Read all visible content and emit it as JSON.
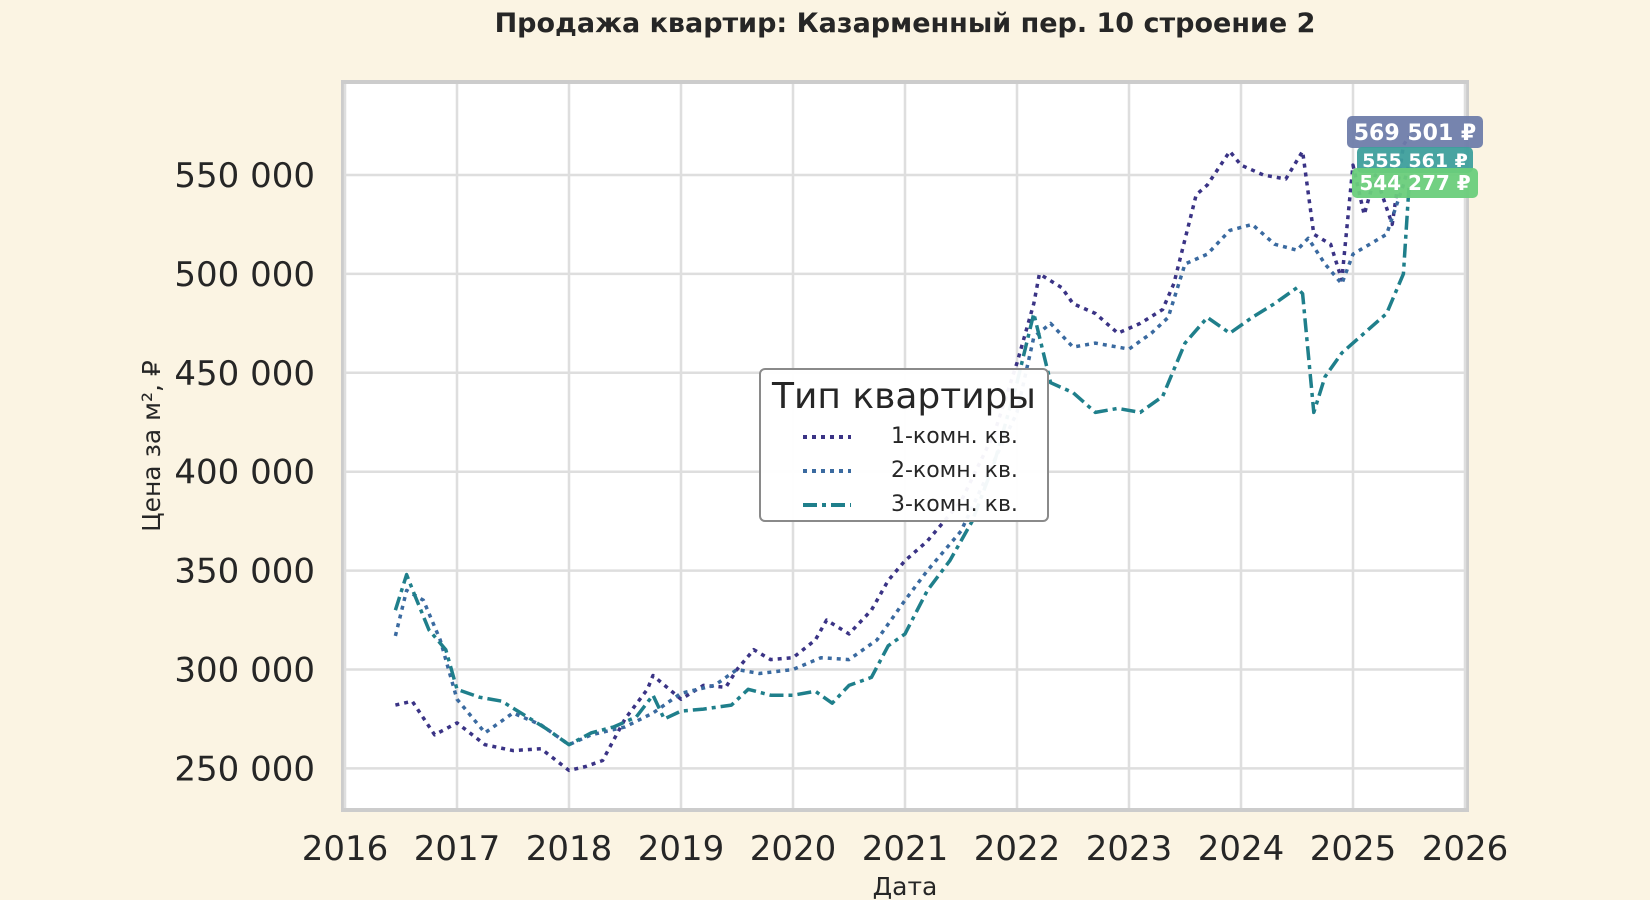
{
  "chart_data": {
    "type": "line",
    "title": "Продажа квартир: Казарменный пер. 10 строение 2",
    "xlabel": "Дата",
    "ylabel": "Цена за м², ₽",
    "xlim": [
      2016,
      2026
    ],
    "ylim": [
      230000,
      596000
    ],
    "x_ticks": [
      "2016",
      "2017",
      "2018",
      "2019",
      "2020",
      "2021",
      "2022",
      "2023",
      "2024",
      "2025",
      "2026"
    ],
    "y_ticks": [
      "250 000",
      "300 000",
      "350 000",
      "400 000",
      "450 000",
      "500 000",
      "550 000"
    ],
    "grid": true,
    "legend": {
      "title": "Тип квартиры",
      "placement": "center",
      "entries": [
        "1-комн. кв.",
        "2-комн. кв.",
        "3-комн. кв."
      ]
    },
    "series": [
      {
        "name": "1-комн. кв.",
        "color": "#3a3385",
        "style": "dotted",
        "x": [
          2016.45,
          2016.6,
          2016.8,
          2017.0,
          2017.25,
          2017.5,
          2017.75,
          2018.0,
          2018.15,
          2018.3,
          2018.5,
          2018.7,
          2018.75,
          2019.0,
          2019.2,
          2019.4,
          2019.5,
          2019.65,
          2019.8,
          2020.0,
          2020.2,
          2020.3,
          2020.5,
          2020.7,
          2020.85,
          2021.0,
          2021.2,
          2021.5,
          2021.8,
          2022.0,
          2022.15,
          2022.2,
          2022.4,
          2022.5,
          2022.7,
          2022.9,
          2023.1,
          2023.3,
          2023.4,
          2023.6,
          2023.7,
          2023.9,
          2024.0,
          2024.2,
          2024.4,
          2024.55,
          2024.65,
          2024.8,
          2024.9,
          2025.0,
          2025.1,
          2025.2,
          2025.35,
          2025.45,
          2025.5
        ],
        "y": [
          282000,
          284000,
          267000,
          273000,
          262000,
          259000,
          260000,
          249000,
          251000,
          254000,
          275000,
          290000,
          297000,
          285000,
          292000,
          291000,
          300000,
          310000,
          305000,
          306000,
          315000,
          325000,
          318000,
          330000,
          345000,
          355000,
          365000,
          385000,
          420000,
          455000,
          485000,
          500000,
          493000,
          485000,
          480000,
          470000,
          475000,
          482000,
          495000,
          540000,
          545000,
          562000,
          555000,
          550000,
          548000,
          562000,
          520000,
          515000,
          497000,
          555000,
          530000,
          550000,
          525000,
          565000,
          569501
        ]
      },
      {
        "name": "2-комн. кв.",
        "color": "#3a6aa0",
        "style": "dotted",
        "x": [
          2016.45,
          2016.55,
          2016.7,
          2016.85,
          2017.0,
          2017.25,
          2017.5,
          2017.75,
          2018.0,
          2018.2,
          2018.5,
          2018.75,
          2019.0,
          2019.3,
          2019.5,
          2019.7,
          2020.0,
          2020.25,
          2020.5,
          2020.75,
          2021.0,
          2021.2,
          2021.5,
          2021.75,
          2022.0,
          2022.15,
          2022.3,
          2022.5,
          2022.7,
          2023.0,
          2023.2,
          2023.35,
          2023.5,
          2023.7,
          2023.9,
          2024.1,
          2024.3,
          2024.5,
          2024.6,
          2024.75,
          2024.9,
          2025.0,
          2025.15,
          2025.3,
          2025.45,
          2025.5
        ],
        "y": [
          317000,
          340000,
          335000,
          315000,
          285000,
          268000,
          278000,
          272000,
          262000,
          267000,
          271000,
          278000,
          288000,
          292000,
          300000,
          298000,
          300000,
          306000,
          305000,
          315000,
          335000,
          350000,
          370000,
          400000,
          430000,
          468000,
          475000,
          463000,
          465000,
          462000,
          470000,
          478000,
          505000,
          510000,
          522000,
          525000,
          515000,
          512000,
          518000,
          505000,
          495000,
          510000,
          515000,
          520000,
          545000,
          555561
        ]
      },
      {
        "name": "3-комн. кв.",
        "color": "#1f7f8b",
        "style": "dashdot",
        "x": [
          2016.45,
          2016.55,
          2016.62,
          2016.75,
          2016.9,
          2017.0,
          2017.2,
          2017.4,
          2017.6,
          2017.8,
          2018.0,
          2018.2,
          2018.4,
          2018.6,
          2018.75,
          2018.85,
          2019.0,
          2019.2,
          2019.45,
          2019.6,
          2019.8,
          2020.0,
          2020.2,
          2020.35,
          2020.5,
          2020.7,
          2020.85,
          2021.0,
          2021.2,
          2021.4,
          2021.6,
          2021.8,
          2022.0,
          2022.15,
          2022.3,
          2022.5,
          2022.7,
          2022.9,
          2023.1,
          2023.3,
          2023.5,
          2023.7,
          2023.9,
          2024.1,
          2024.3,
          2024.5,
          2024.55,
          2024.65,
          2024.75,
          2024.9,
          2025.1,
          2025.3,
          2025.45,
          2025.5
        ],
        "y": [
          330000,
          348000,
          338000,
          320000,
          310000,
          290000,
          286000,
          284000,
          277000,
          270000,
          262000,
          268000,
          271000,
          276000,
          287000,
          275000,
          279000,
          280000,
          282000,
          290000,
          287000,
          287000,
          289000,
          283000,
          292000,
          296000,
          312000,
          318000,
          340000,
          355000,
          375000,
          405000,
          445000,
          480000,
          445000,
          440000,
          430000,
          432000,
          430000,
          438000,
          465000,
          478000,
          470000,
          478000,
          485000,
          493000,
          490000,
          430000,
          448000,
          460000,
          470000,
          480000,
          500000,
          544277
        ]
      }
    ],
    "end_labels": [
      {
        "series": "1-комн. кв.",
        "text": "569 501 ₽",
        "value": 569501,
        "color": "#6f7daa"
      },
      {
        "series": "2-комн. кв.",
        "text": "555 561 ₽",
        "value": 555561,
        "color": "#3e9f9c"
      },
      {
        "series": "3-комн. кв.",
        "text": "544 277 ₽",
        "value": 544277,
        "color": "#6acd7b"
      }
    ]
  }
}
